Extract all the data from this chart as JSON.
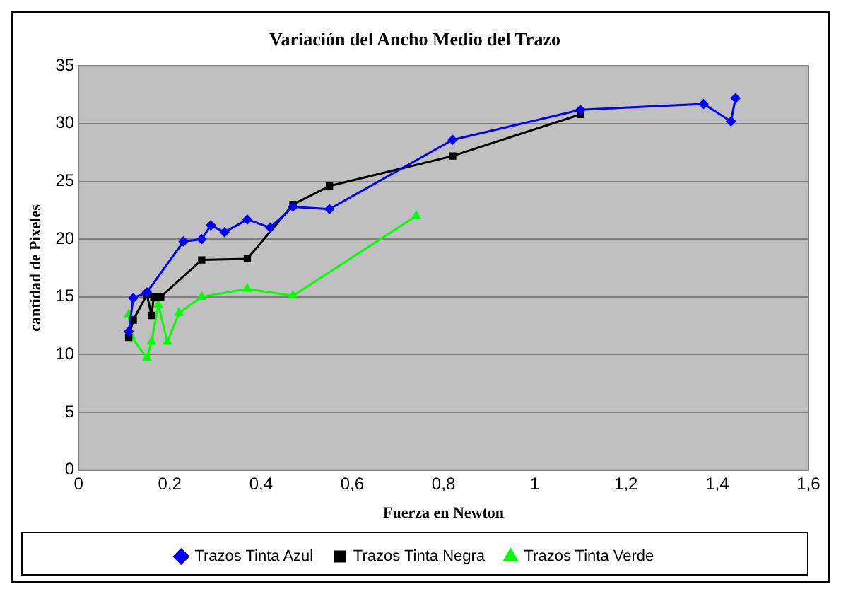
{
  "chart_data": {
    "type": "line",
    "title": "Variación del Ancho Medio del Trazo",
    "xlabel": "Fuerza en Newton",
    "ylabel": "cantidad de Pixeles",
    "xlim": [
      0,
      1.6
    ],
    "xticks": [
      0,
      {
        "value": 0.2,
        "label": "0,2"
      },
      {
        "value": 0.4,
        "label": "0,4"
      },
      {
        "value": 0.6,
        "label": "0,6"
      },
      {
        "value": 0.8,
        "label": "0,8"
      },
      1,
      {
        "value": 1.2,
        "label": "1,2"
      },
      {
        "value": 1.4,
        "label": "1,4"
      },
      {
        "value": 1.6,
        "label": "1,6"
      }
    ],
    "ylim": [
      0,
      35
    ],
    "yticks": [
      0,
      5,
      10,
      15,
      20,
      25,
      30,
      35
    ],
    "grid": "y",
    "legend": "bottom",
    "series": [
      {
        "name": "Trazos Tinta Azul",
        "color": "#0000ff",
        "marker": "diamond",
        "x": [
          0.11,
          0.12,
          0.15,
          0.23,
          0.27,
          0.29,
          0.32,
          0.37,
          0.42,
          0.47,
          0.55,
          0.82,
          1.1,
          1.37,
          1.43,
          1.44
        ],
        "values": [
          12,
          14.9,
          15.4,
          19.8,
          20,
          21.2,
          20.6,
          21.7,
          21,
          22.8,
          22.6,
          28.6,
          31.2,
          31.7,
          30.2,
          32.2
        ]
      },
      {
        "name": "Trazos Tinta Negra",
        "color": "#000000",
        "marker": "square",
        "x": [
          0.11,
          0.12,
          0.15,
          0.16,
          0.165,
          0.18,
          0.27,
          0.37,
          0.47,
          0.55,
          0.82,
          1.1
        ],
        "values": [
          11.5,
          13,
          15.2,
          13.4,
          15,
          15,
          18.2,
          18.3,
          23,
          24.6,
          27.2,
          30.8
        ]
      },
      {
        "name": "Trazos Tinta Verde",
        "color": "#00ff00",
        "marker": "triangle",
        "x": [
          0.11,
          0.115,
          0.15,
          0.16,
          0.175,
          0.195,
          0.22,
          0.27,
          0.37,
          0.47,
          0.74
        ],
        "values": [
          13.5,
          11.6,
          9.7,
          11.1,
          14.3,
          11.1,
          13.6,
          15,
          15.7,
          15.1,
          22
        ]
      }
    ]
  }
}
